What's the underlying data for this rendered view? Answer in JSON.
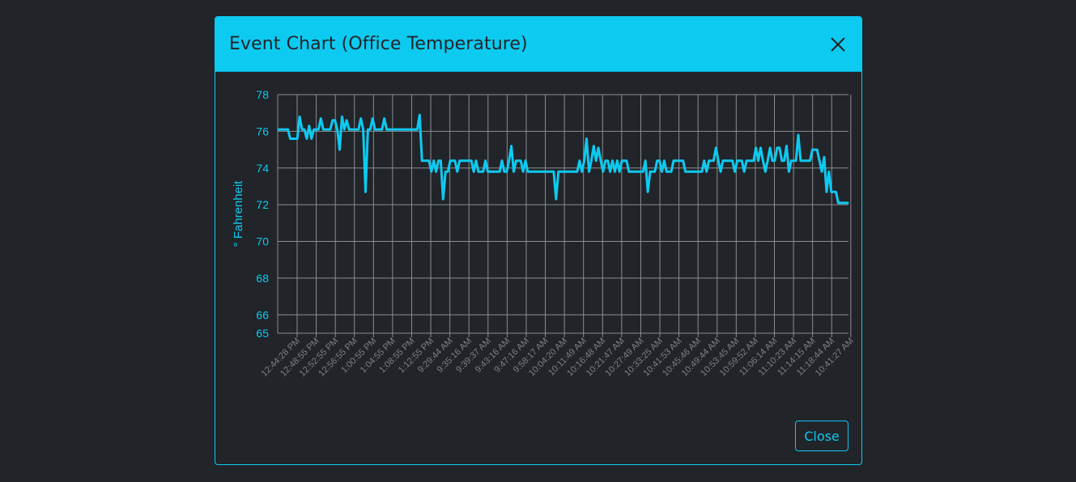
{
  "modal": {
    "title": "Event Chart (Office Temperature)",
    "close_button_label": "Close",
    "close_icon": "close-icon"
  },
  "colors": {
    "accent": "#0dcaf0",
    "background": "#212429",
    "grid": "#8a8d91",
    "tick": "#7d8085"
  },
  "chart_data": {
    "type": "line",
    "title": "",
    "ylabel": "° Fahrenheit",
    "xlabel": "",
    "ylim": [
      65,
      78
    ],
    "yticks": [
      78,
      76,
      74,
      72,
      70,
      68,
      66,
      65
    ],
    "grid": true,
    "x_tick_labels": [
      "12:44:28 PM",
      "12:48:55 PM",
      "12:52:55 PM",
      "12:56:55 PM",
      "1:00:55 PM",
      "1:04:55 PM",
      "1:08:55 PM",
      "1:12:55 PM",
      "9:29:44 AM",
      "9:35:16 AM",
      "9:39:37 AM",
      "9:43:16 AM",
      "9:47:16 AM",
      "9:58:17 AM",
      "10:04:20 AM",
      "10:11:49 AM",
      "10:16:48 AM",
      "10:21:47 AM",
      "10:27:49 AM",
      "10:33:25 AM",
      "10:41:53 AM",
      "10:45:46 AM",
      "10:49:44 AM",
      "10:53:45 AM",
      "10:59:52 AM",
      "11:06:14 AM",
      "11:10:23 AM",
      "11:14:15 AM",
      "11:18:44 AM",
      "10:41:27 AM"
    ],
    "series": [
      {
        "values": [
          76.1,
          76.1,
          76.1,
          76.1,
          76.1,
          75.6,
          75.6,
          75.6,
          75.6,
          76.8,
          76.1,
          76.1,
          75.6,
          76.3,
          75.6,
          76.1,
          76.1,
          76.1,
          76.7,
          76.1,
          76.1,
          76.1,
          76.1,
          76.6,
          76.6,
          76.1,
          75.0,
          76.8,
          76.1,
          76.6,
          76.1,
          76.1,
          76.1,
          76.1,
          76.1,
          76.7,
          76.1,
          72.7,
          76.1,
          76.1,
          76.7,
          76.1,
          76.1,
          76.1,
          76.1,
          76.7,
          76.1,
          76.1,
          76.1,
          76.1,
          76.1,
          76.1,
          76.1,
          76.1,
          76.1,
          76.1,
          76.1,
          76.1,
          76.1,
          76.1,
          76.9,
          74.4,
          74.4,
          74.4,
          74.4,
          73.8,
          74.4,
          73.8,
          74.4,
          74.4,
          72.3,
          73.8,
          73.8,
          74.4,
          74.4,
          74.4,
          73.8,
          74.4,
          74.4,
          74.4,
          74.4,
          74.4,
          74.4,
          73.8,
          74.4,
          73.8,
          73.8,
          73.8,
          74.4,
          73.8,
          73.8,
          73.8,
          73.8,
          73.8,
          73.8,
          74.4,
          73.8,
          73.8,
          74.4,
          75.2,
          73.8,
          74.4,
          74.4,
          74.4,
          73.8,
          74.4,
          73.8,
          73.8,
          73.8,
          73.8,
          73.8,
          73.8,
          73.8,
          73.8,
          73.8,
          73.8,
          73.8,
          73.8,
          72.3,
          73.8,
          73.8,
          73.8,
          73.8,
          73.8,
          73.8,
          73.8,
          73.8,
          73.8,
          74.4,
          73.8,
          74.4,
          75.6,
          73.8,
          74.4,
          75.2,
          74.4,
          75.1,
          74.4,
          73.8,
          74.4,
          74.4,
          73.8,
          74.4,
          73.8,
          74.4,
          73.8,
          74.4,
          74.4,
          74.4,
          73.8,
          73.8,
          73.8,
          73.8,
          73.8,
          73.8,
          73.8,
          74.4,
          72.7,
          73.8,
          73.8,
          73.8,
          74.4,
          74.4,
          73.8,
          74.4,
          73.8,
          73.8,
          73.8,
          74.4,
          74.4,
          74.4,
          74.4,
          74.4,
          73.8,
          73.8,
          73.8,
          73.8,
          73.8,
          73.8,
          73.8,
          73.8,
          74.4,
          73.8,
          74.4,
          74.4,
          74.4,
          75.1,
          74.4,
          73.8,
          74.4,
          74.4,
          74.4,
          74.4,
          74.4,
          73.8,
          74.4,
          74.4,
          74.4,
          73.8,
          74.4,
          74.4,
          74.4,
          74.4,
          75.1,
          74.4,
          75.1,
          74.4,
          73.8,
          74.4,
          75.1,
          74.4,
          74.4,
          75.1,
          75.1,
          74.4,
          74.4,
          75.2,
          73.8,
          74.4,
          74.4,
          74.4,
          75.8,
          74.4,
          74.4,
          74.4,
          74.4,
          74.4,
          75.0,
          75.0,
          75.0,
          74.4,
          73.8,
          74.6,
          72.7,
          73.8,
          72.7,
          72.7,
          72.7,
          72.1,
          72.1,
          72.1,
          72.1,
          72.1
        ]
      }
    ]
  }
}
